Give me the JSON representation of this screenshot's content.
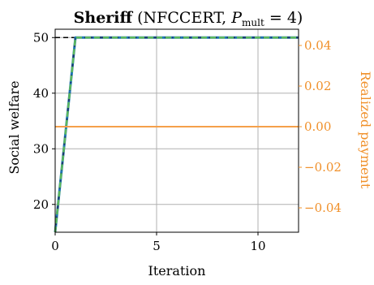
{
  "chart_data": {
    "type": "line",
    "title": {
      "bold": "Sheriff",
      "prefix": " (NFCCERT, ",
      "p_main": "P",
      "p_sub": "mult",
      "suffix": " = 4)"
    },
    "xlabel": "Iteration",
    "ylabel_left": "Social welfare",
    "ylabel_right": "Realized payment",
    "xlim": [
      0,
      12
    ],
    "ylim_left": [
      15,
      51.5
    ],
    "ylim_right": [
      -0.052,
      0.048
    ],
    "x_ticks": [
      0,
      5,
      10
    ],
    "x_tick_labels": [
      "0",
      "5",
      "10"
    ],
    "y_left_ticks": [
      20,
      30,
      40,
      50
    ],
    "y_left_tick_labels": [
      "20",
      "30",
      "40",
      "50"
    ],
    "y_right_ticks": [
      -0.04,
      -0.02,
      0.0,
      0.02,
      0.04
    ],
    "y_right_tick_labels": [
      "−0.04",
      "−0.02",
      "0.00",
      "0.02",
      "0.04"
    ],
    "grid": true,
    "reference_line": {
      "axis": "left",
      "y": 50,
      "style": "dashed",
      "color": "#000000"
    },
    "series": [
      {
        "axis": "left",
        "style": "solid",
        "color": "#1f77b4",
        "x": [
          0,
          1,
          2,
          3,
          4,
          5,
          6,
          7,
          8,
          9,
          10,
          11,
          12
        ],
        "y": [
          15,
          50,
          50,
          50,
          50,
          50,
          50,
          50,
          50,
          50,
          50,
          50,
          50
        ]
      },
      {
        "axis": "left",
        "style": "dashdot",
        "color": "#1f3a68",
        "x": [
          0,
          1,
          2,
          3,
          4,
          5,
          6,
          7,
          8,
          9,
          10,
          11,
          12
        ],
        "y": [
          15,
          50,
          50,
          50,
          50,
          50,
          50,
          50,
          50,
          50,
          50,
          50,
          50
        ]
      },
      {
        "axis": "left",
        "style": "dashed",
        "color": "#5cb85c",
        "x": [
          0,
          1,
          2,
          3,
          4,
          5,
          6,
          7,
          8,
          9,
          10,
          11,
          12
        ],
        "y": [
          15,
          50,
          50,
          50,
          50,
          50,
          50,
          50,
          50,
          50,
          50,
          50,
          50
        ]
      },
      {
        "axis": "right",
        "style": "solid",
        "color": "#f5a04a",
        "x": [
          0,
          12
        ],
        "y": [
          0.0,
          0.0
        ]
      }
    ],
    "colors": {
      "right_axis": "#f0902a",
      "grid": "#b0b0b0",
      "axes": "#000000"
    }
  }
}
